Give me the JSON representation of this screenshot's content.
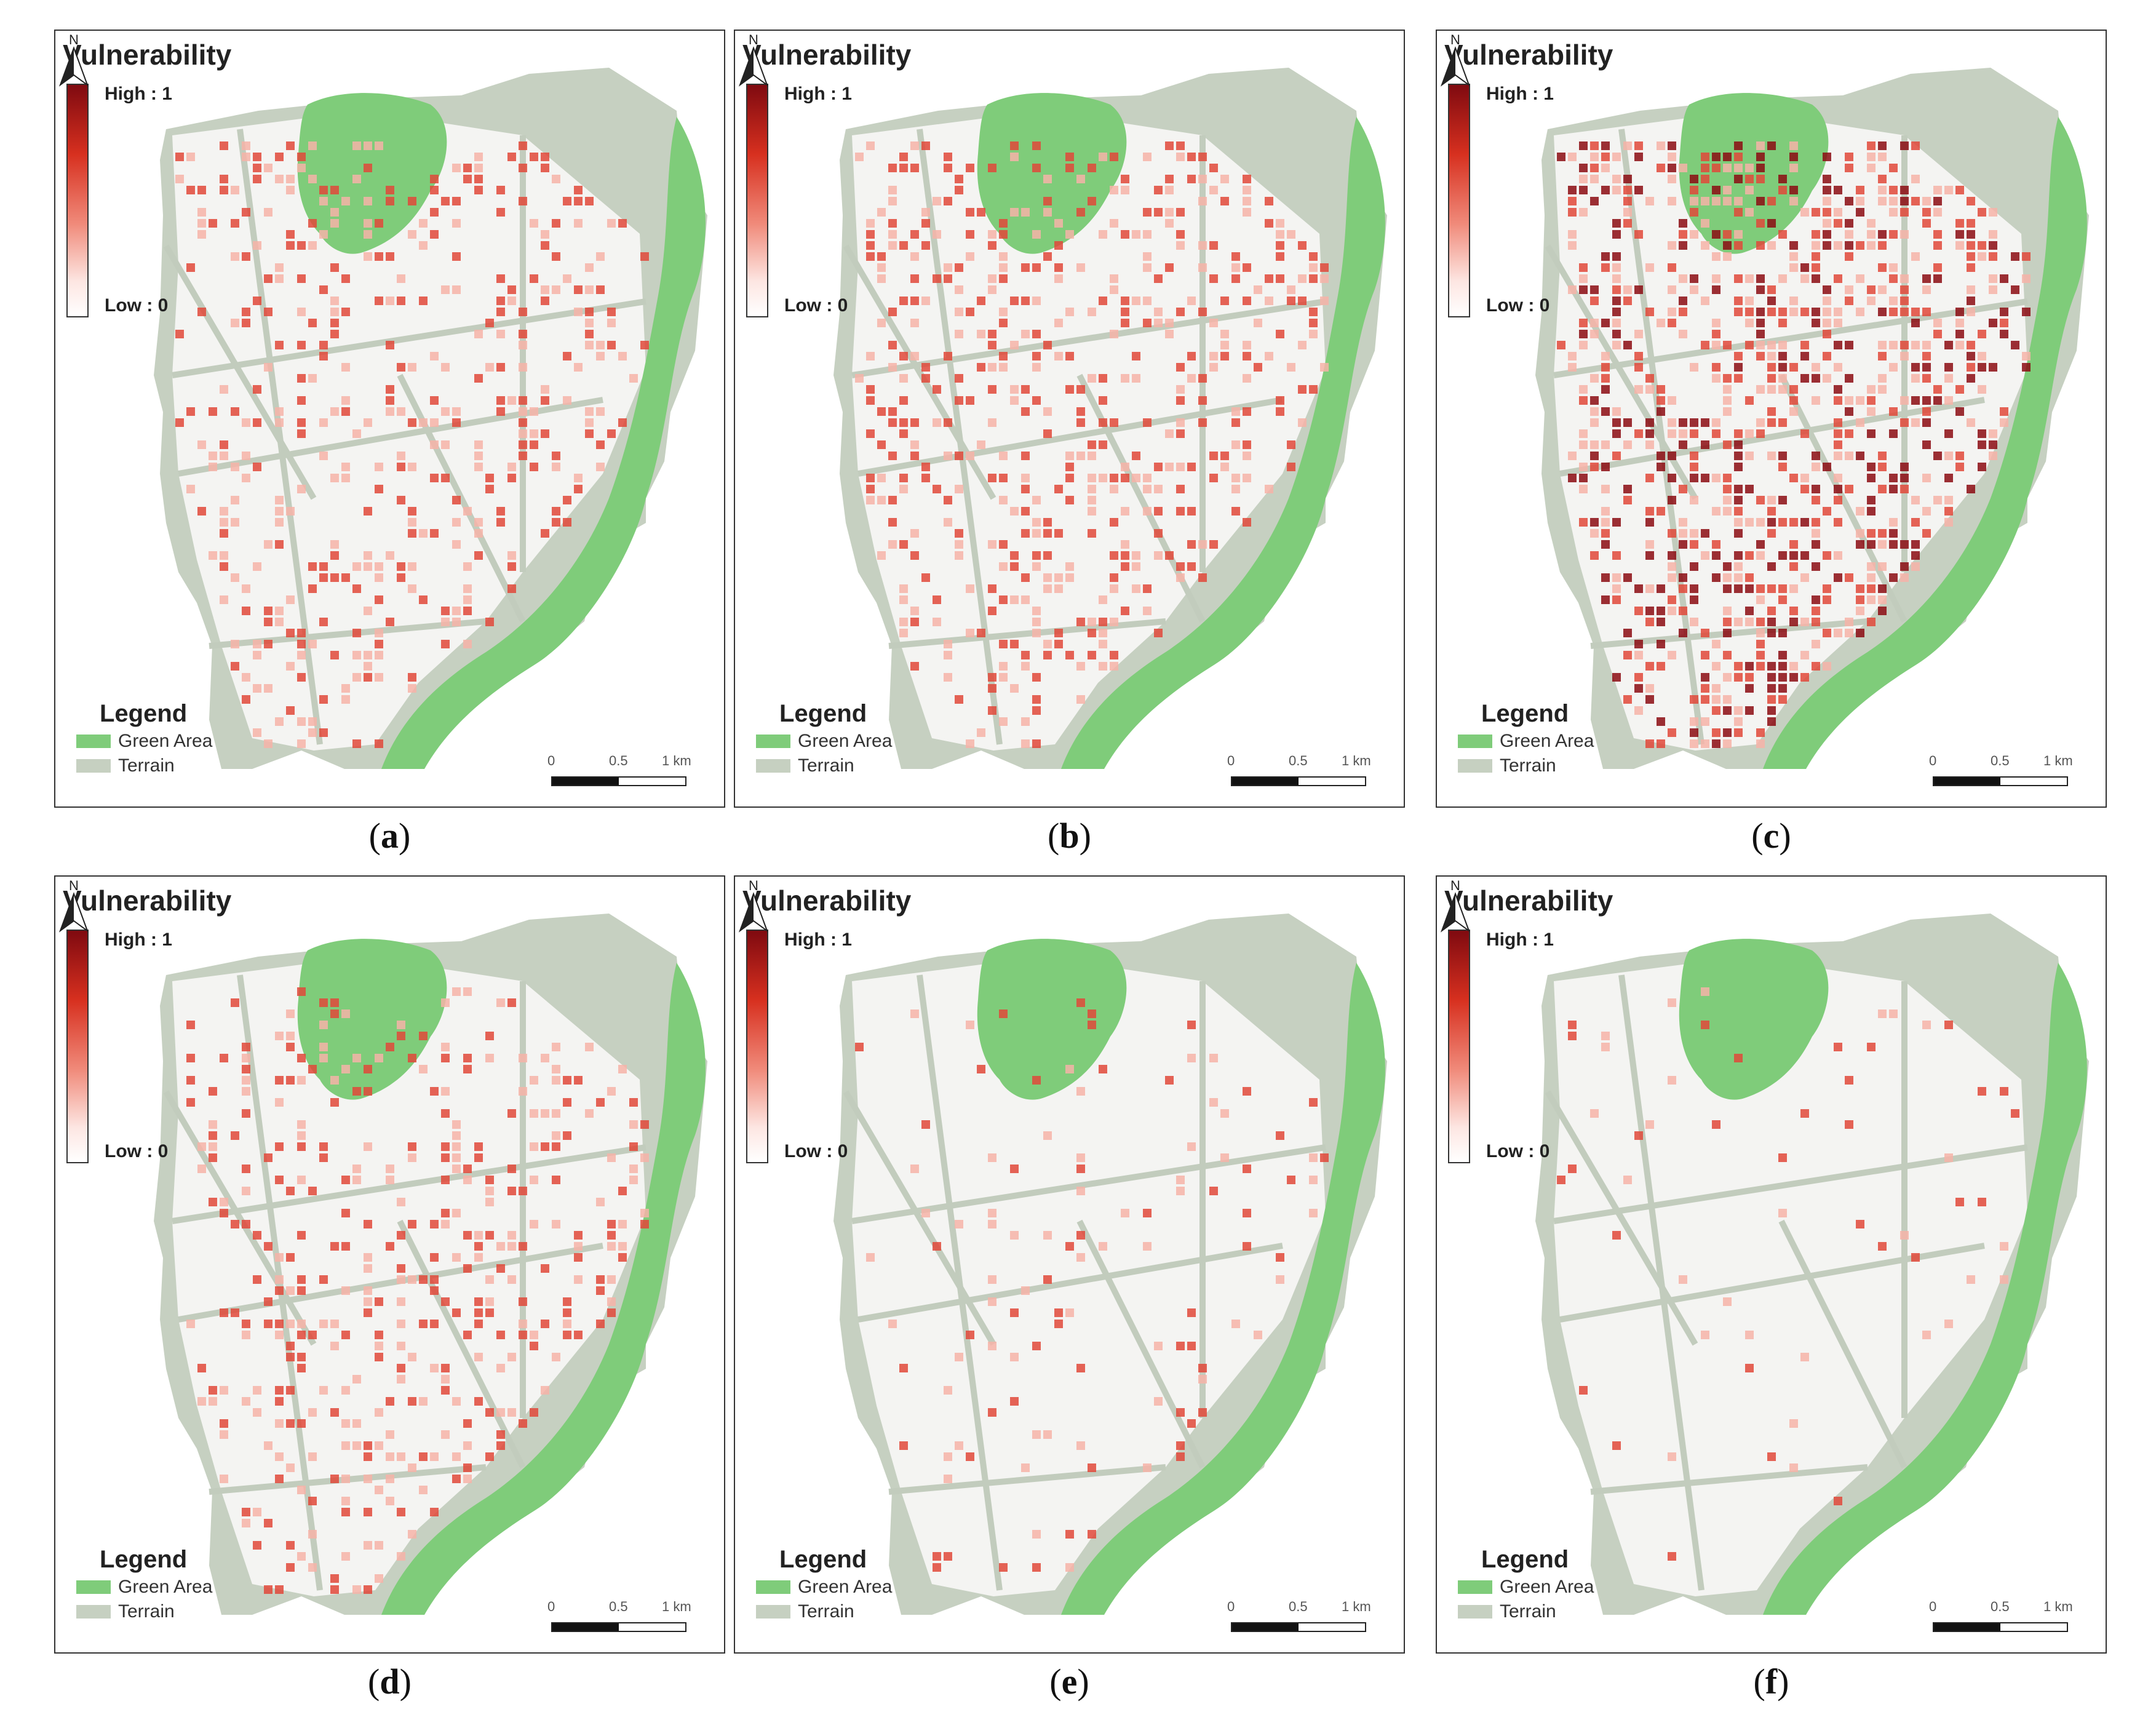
{
  "legend_colors": {
    "green_area": "#7fcc7a",
    "terrain": "#c6d0c1",
    "building": "#f4f4f2",
    "high": "#8b0a12",
    "mid": "#e0483a",
    "low": "#f6b3a8"
  },
  "panels": [
    {
      "title": "Vulnerability",
      "high_label": "High : 1",
      "low_label": "Low : 0",
      "legend_title": "Legend",
      "legend_items": [
        {
          "label": "Green Area"
        },
        {
          "label": "Terrain"
        }
      ],
      "north_label": "N",
      "scale_labels": [
        "0",
        "0.5",
        "1 km"
      ],
      "caption_letter": "a",
      "intensity": 0.45
    },
    {
      "title": "Vulnerability",
      "high_label": "High : 1",
      "low_label": "Low : 0",
      "legend_title": "Legend",
      "legend_items": [
        {
          "label": "Green Area"
        },
        {
          "label": "Terrain"
        }
      ],
      "north_label": "N",
      "scale_labels": [
        "0",
        "0.5",
        "1 km"
      ],
      "caption_letter": "b",
      "intensity": 0.55
    },
    {
      "title": "Vulnerability",
      "high_label": "High : 1",
      "low_label": "Low : 0",
      "legend_title": "Legend",
      "legend_items": [
        {
          "label": "Green Area"
        },
        {
          "label": "Terrain"
        }
      ],
      "north_label": "N",
      "scale_labels": [
        "0",
        "0.5",
        "1 km"
      ],
      "caption_letter": "c",
      "intensity": 0.85
    },
    {
      "title": "Vulnerability",
      "high_label": "High : 1",
      "low_label": "Low : 0",
      "legend_title": "Legend",
      "legend_items": [
        {
          "label": "Green Area"
        },
        {
          "label": "Terrain"
        }
      ],
      "north_label": "N",
      "scale_labels": [
        "0",
        "0.5",
        "1 km"
      ],
      "caption_letter": "d",
      "intensity": 0.4
    },
    {
      "title": "Vulnerability",
      "high_label": "High : 1",
      "low_label": "Low : 0",
      "legend_title": "Legend",
      "legend_items": [
        {
          "label": "Green Area"
        },
        {
          "label": "Terrain"
        }
      ],
      "north_label": "N",
      "scale_labels": [
        "0",
        "0.5",
        "1 km"
      ],
      "caption_letter": "e",
      "intensity": 0.12
    },
    {
      "title": "Vulnerability",
      "high_label": "High : 1",
      "low_label": "Low : 0",
      "legend_title": "Legend",
      "legend_items": [
        {
          "label": "Green Area"
        },
        {
          "label": "Terrain"
        }
      ],
      "north_label": "N",
      "scale_labels": [
        "0",
        "0.5",
        "1 km"
      ],
      "caption_letter": "f",
      "intensity": 0.06
    }
  ]
}
